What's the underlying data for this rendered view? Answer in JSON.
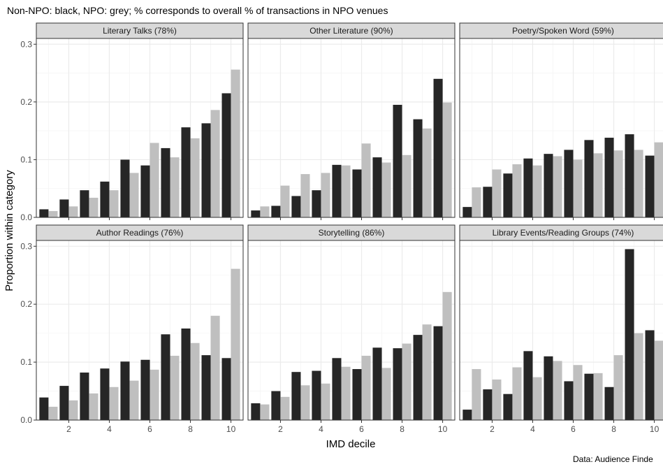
{
  "figure": {
    "title": "Non-NPO: black, NPO: grey; % corresponds to overall % of transactions in NPO venues",
    "xlabel": "IMD decile",
    "ylabel": "Proportion within category",
    "caption": "Data: Audience Finde",
    "colors": {
      "non_npo": "#262626",
      "npo": "#bfbfbf",
      "strip_fill": "#d9d9d9",
      "panel_border": "#333333",
      "grid_major": "#ebebeb",
      "grid_minor": "#f5f5f5"
    }
  },
  "chart_data": {
    "type": "bar",
    "layout": "facet-grid 2x3",
    "x": [
      1,
      2,
      3,
      4,
      5,
      6,
      7,
      8,
      9,
      10
    ],
    "x_ticks": [
      2,
      4,
      6,
      8,
      10
    ],
    "y_ticks": [
      0.0,
      0.1,
      0.2,
      0.3
    ],
    "y_tick_labels": [
      "0.0",
      "0.1",
      "0.2",
      "0.3"
    ],
    "ylim": [
      0,
      0.31
    ],
    "grid": true,
    "legend": "none",
    "series_names": [
      "Non-NPO",
      "NPO"
    ],
    "panels": [
      {
        "title": "Literary Talks (78%)",
        "non_npo": [
          0.014,
          0.031,
          0.047,
          0.062,
          0.1,
          0.09,
          0.12,
          0.156,
          0.163,
          0.215
        ],
        "npo": [
          0.011,
          0.019,
          0.034,
          0.047,
          0.077,
          0.129,
          0.104,
          0.137,
          0.186,
          0.256
        ]
      },
      {
        "title": "Other Literature (90%)",
        "non_npo": [
          0.012,
          0.02,
          0.037,
          0.047,
          0.091,
          0.083,
          0.104,
          0.195,
          0.17,
          0.24
        ],
        "npo": [
          0.019,
          0.055,
          0.075,
          0.077,
          0.09,
          0.128,
          0.095,
          0.108,
          0.154,
          0.199
        ]
      },
      {
        "title": "Poetry/Spoken Word (59%)",
        "non_npo": [
          0.018,
          0.053,
          0.076,
          0.102,
          0.11,
          0.117,
          0.134,
          0.138,
          0.144,
          0.107
        ],
        "npo": [
          0.052,
          0.083,
          0.092,
          0.09,
          0.106,
          0.1,
          0.111,
          0.116,
          0.117,
          0.13
        ]
      },
      {
        "title": "Author Readings (76%)",
        "non_npo": [
          0.039,
          0.059,
          0.082,
          0.089,
          0.101,
          0.104,
          0.148,
          0.158,
          0.112,
          0.107
        ],
        "npo": [
          0.023,
          0.034,
          0.046,
          0.057,
          0.068,
          0.087,
          0.111,
          0.133,
          0.18,
          0.261
        ]
      },
      {
        "title": "Storytelling (86%)",
        "non_npo": [
          0.029,
          0.05,
          0.083,
          0.085,
          0.107,
          0.088,
          0.125,
          0.124,
          0.147,
          0.162
        ],
        "npo": [
          0.027,
          0.04,
          0.06,
          0.063,
          0.092,
          0.111,
          0.09,
          0.132,
          0.165,
          0.221
        ]
      },
      {
        "title": "Library Events/Reading Groups (74%)",
        "non_npo": [
          0.018,
          0.053,
          0.045,
          0.119,
          0.11,
          0.067,
          0.08,
          0.057,
          0.295,
          0.155
        ],
        "npo": [
          0.088,
          0.07,
          0.091,
          0.074,
          0.102,
          0.095,
          0.081,
          0.112,
          0.15,
          0.137
        ]
      }
    ]
  }
}
